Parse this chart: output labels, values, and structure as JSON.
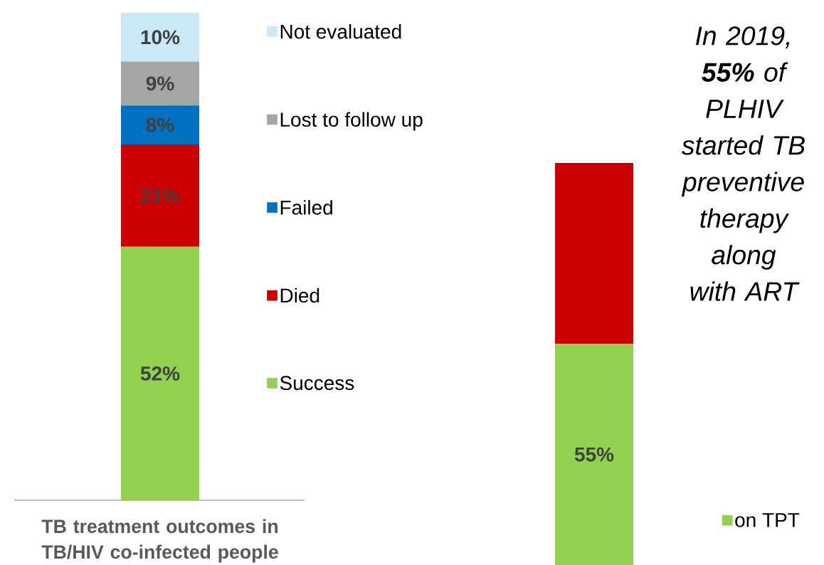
{
  "chart_data": [
    {
      "type": "bar",
      "stacked": true,
      "title": "TB treatment outcomes in TB/HIV co-infected people",
      "categories": [
        null
      ],
      "legend": "right",
      "series": [
        {
          "name": "Success",
          "color": "#92d050",
          "values": [
            52
          ],
          "value_labels": [
            "52%"
          ]
        },
        {
          "name": "Died",
          "color": "#cc0000",
          "values": [
            21
          ],
          "value_labels": [
            "21%"
          ]
        },
        {
          "name": "Failed",
          "color": "#0070c0",
          "values": [
            8
          ],
          "value_labels": [
            "8%"
          ]
        },
        {
          "name": "Lost to follow up",
          "color": "#a5a5a5",
          "values": [
            9
          ],
          "value_labels": [
            "9%"
          ]
        },
        {
          "name": "Not evaluated",
          "color": "#c9e9f6",
          "values": [
            10
          ],
          "value_labels": [
            "10%"
          ]
        }
      ]
    },
    {
      "type": "bar",
      "stacked": true,
      "categories": [
        null
      ],
      "legend": "bottom right",
      "annotations": [
        "In 2019, **55%** of PLHIV started TB preventive therapy along with ART"
      ],
      "series": [
        {
          "name": "on TPT",
          "color": "#92d050",
          "values": [
            55
          ],
          "value_labels": [
            "55%"
          ]
        },
        {
          "color": "#cc0000",
          "values": [
            45
          ]
        }
      ]
    }
  ]
}
